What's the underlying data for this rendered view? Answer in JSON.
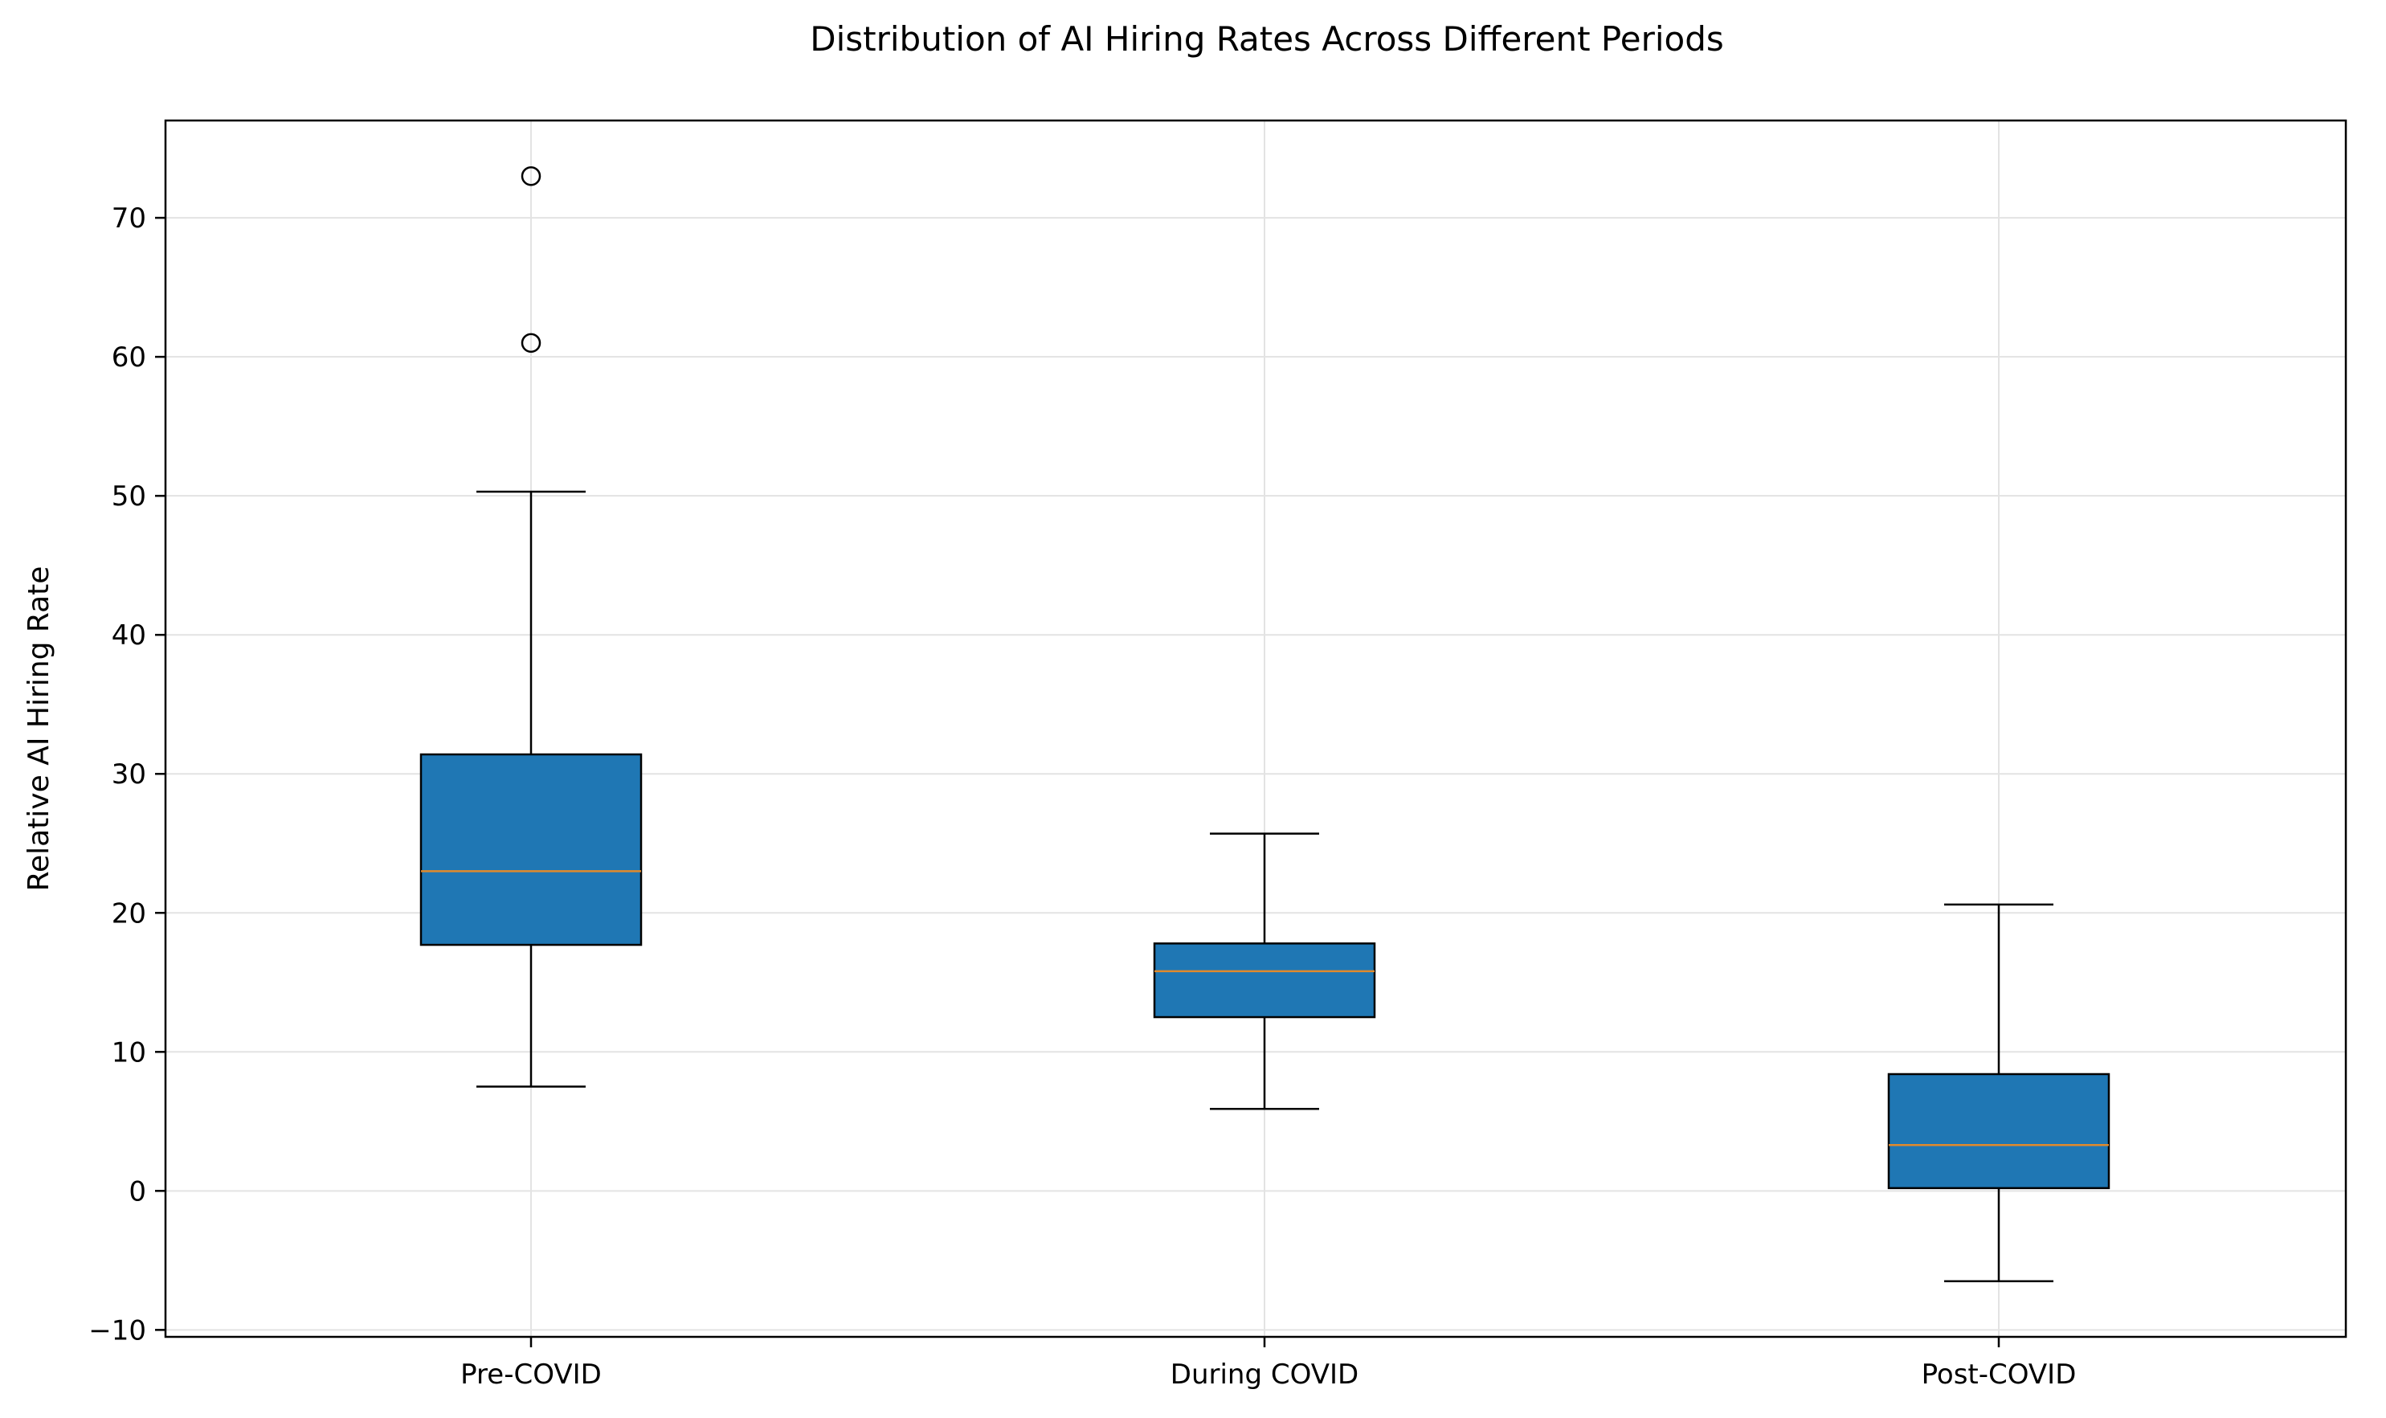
{
  "chart_data": {
    "type": "box",
    "title": "Distribution of AI Hiring Rates Across Different Periods",
    "xlabel": "",
    "ylabel": "Relative AI Hiring Rate",
    "ylim": [
      -10.5,
      77
    ],
    "yticks": [
      -10,
      0,
      10,
      20,
      30,
      40,
      50,
      60,
      70
    ],
    "grid": true,
    "colors": {
      "box_fill": "#1f77b4",
      "box_edge": "#000000",
      "median": "#e08a2c",
      "grid": "#e3e3e3"
    },
    "categories": [
      "Pre-COVID",
      "During COVID",
      "Post-COVID"
    ],
    "boxes": [
      {
        "label": "Pre-COVID",
        "whisker_low": 7.5,
        "q1": 17.7,
        "median": 23.0,
        "q3": 31.4,
        "whisker_high": 50.3,
        "outliers": [
          61.0,
          73.0
        ]
      },
      {
        "label": "During COVID",
        "whisker_low": 5.9,
        "q1": 12.5,
        "median": 15.8,
        "q3": 17.8,
        "whisker_high": 25.7,
        "outliers": []
      },
      {
        "label": "Post-COVID",
        "whisker_low": -6.5,
        "q1": 0.2,
        "median": 3.3,
        "q3": 8.4,
        "whisker_high": 20.6,
        "outliers": []
      }
    ]
  }
}
